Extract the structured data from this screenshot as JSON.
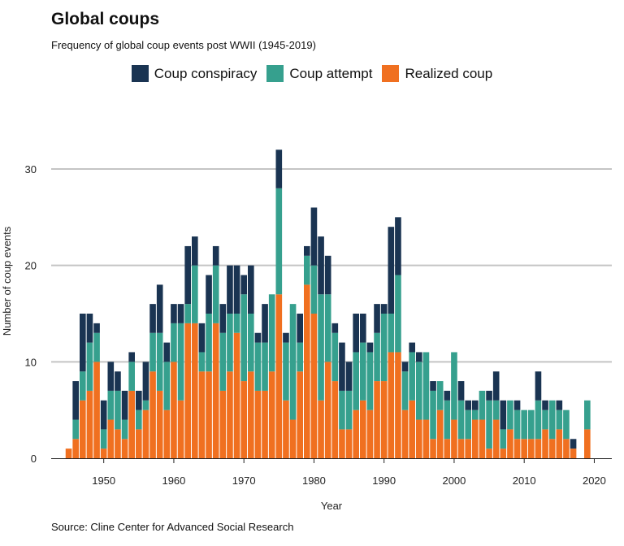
{
  "chart_data": {
    "type": "bar",
    "stacked": true,
    "title": "Global coups",
    "subtitle": "Frequency of global coup events post WWII (1945-2019)",
    "caption": "Source: Cline Center for Advanced Social Research",
    "xlabel": "Year",
    "ylabel": "Number of coup events",
    "xlim": [
      1942.5,
      2022.5
    ],
    "ylim": [
      0,
      32
    ],
    "x_ticks": [
      1950,
      1960,
      1970,
      1980,
      1990,
      2000,
      2010,
      2020
    ],
    "y_ticks": [
      0,
      10,
      20,
      30
    ],
    "grid": "horizontal",
    "legend_position": "top-center",
    "years": [
      1945,
      1946,
      1947,
      1948,
      1949,
      1950,
      1951,
      1952,
      1953,
      1954,
      1955,
      1956,
      1957,
      1958,
      1959,
      1960,
      1961,
      1962,
      1963,
      1964,
      1965,
      1966,
      1967,
      1968,
      1969,
      1970,
      1971,
      1972,
      1973,
      1974,
      1975,
      1976,
      1977,
      1978,
      1979,
      1980,
      1981,
      1982,
      1983,
      1984,
      1985,
      1986,
      1987,
      1988,
      1989,
      1990,
      1991,
      1992,
      1993,
      1994,
      1995,
      1996,
      1997,
      1998,
      1999,
      2000,
      2001,
      2002,
      2003,
      2004,
      2005,
      2006,
      2007,
      2008,
      2009,
      2010,
      2011,
      2012,
      2013,
      2014,
      2015,
      2016,
      2017,
      2018,
      2019
    ],
    "series": [
      {
        "name": "Realized coup",
        "color": "#F07020",
        "values": [
          1,
          2,
          6,
          7,
          10,
          1,
          4,
          3,
          2,
          7,
          3,
          5,
          9,
          7,
          5,
          10,
          6,
          14,
          14,
          9,
          9,
          14,
          7,
          9,
          13,
          8,
          9,
          7,
          7,
          9,
          17,
          6,
          4,
          9,
          18,
          15,
          6,
          10,
          8,
          3,
          3,
          5,
          6,
          5,
          8,
          8,
          11,
          11,
          5,
          6,
          4,
          4,
          2,
          5,
          2,
          4,
          2,
          2,
          4,
          4,
          1,
          4,
          1,
          3,
          2,
          2,
          2,
          2,
          3,
          2,
          3,
          2,
          1,
          0,
          3
        ]
      },
      {
        "name": "Coup attempt",
        "color": "#36A08E",
        "values": [
          0,
          2,
          3,
          5,
          3,
          2,
          3,
          4,
          2,
          3,
          2,
          1,
          4,
          6,
          5,
          4,
          8,
          2,
          6,
          2,
          6,
          6,
          6,
          6,
          2,
          9,
          6,
          5,
          5,
          8,
          11,
          6,
          12,
          3,
          3,
          5,
          11,
          7,
          5,
          4,
          4,
          6,
          6,
          6,
          5,
          7,
          4,
          8,
          4,
          5,
          6,
          7,
          5,
          3,
          4,
          7,
          4,
          3,
          1,
          3,
          5,
          2,
          2,
          3,
          3,
          3,
          3,
          4,
          2,
          4,
          2,
          3,
          0,
          0,
          3
        ]
      },
      {
        "name": "Coup conspiracy",
        "color": "#1A3452",
        "values": [
          0,
          4,
          6,
          3,
          1,
          3,
          3,
          2,
          3,
          1,
          2,
          4,
          3,
          5,
          2,
          2,
          2,
          6,
          3,
          3,
          4,
          2,
          3,
          5,
          5,
          2,
          5,
          1,
          4,
          0,
          4,
          1,
          0,
          3,
          1,
          6,
          6,
          4,
          1,
          5,
          3,
          4,
          3,
          1,
          3,
          1,
          9,
          6,
          1,
          1,
          1,
          0,
          1,
          0,
          1,
          0,
          2,
          1,
          1,
          0,
          1,
          3,
          3,
          0,
          1,
          0,
          0,
          3,
          1,
          0,
          1,
          0,
          1,
          0,
          0
        ]
      }
    ]
  }
}
